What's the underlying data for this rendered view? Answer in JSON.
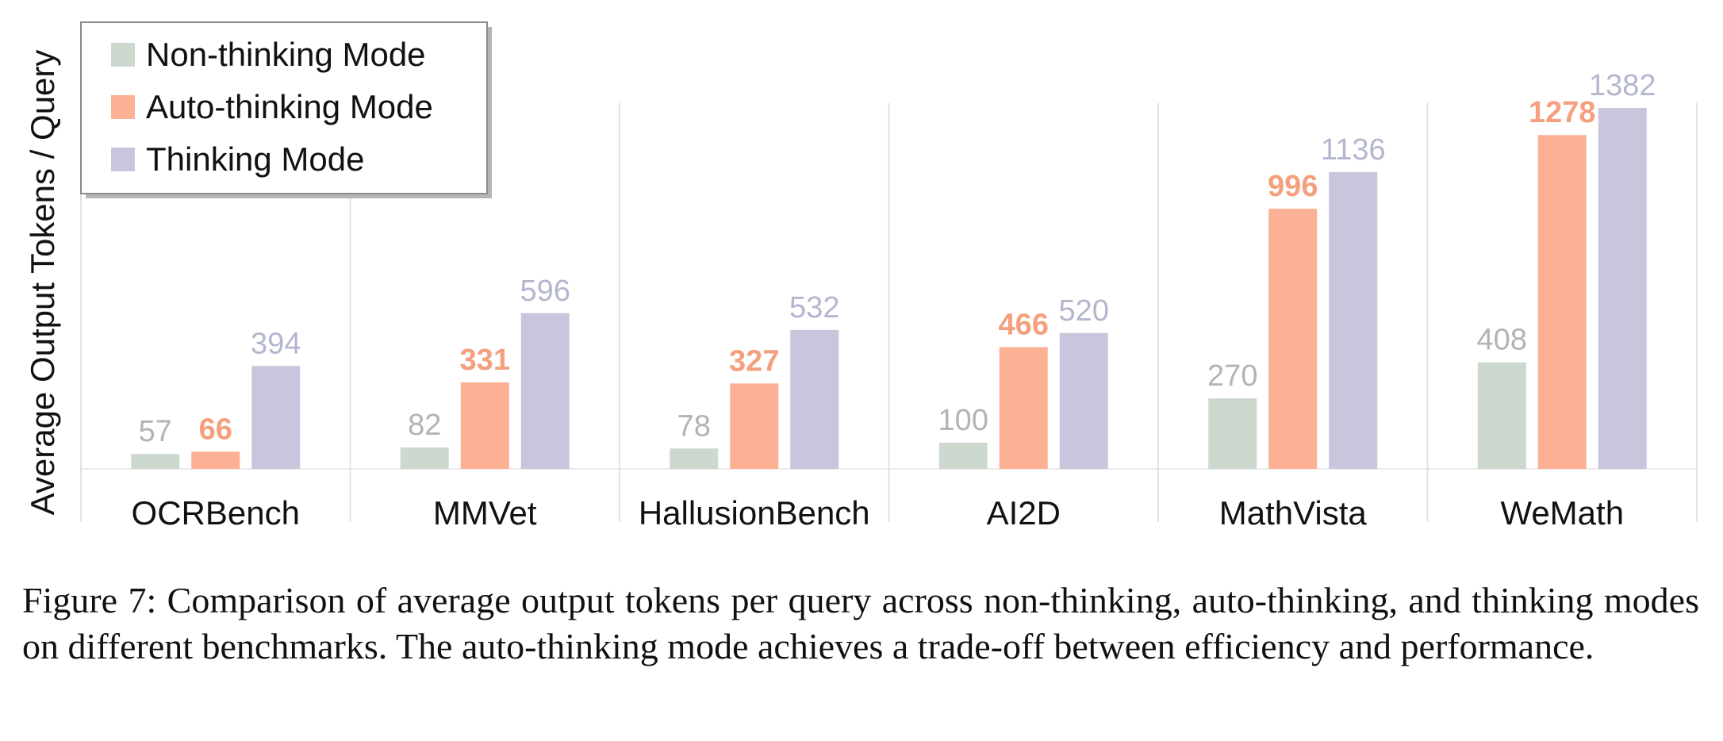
{
  "chart_data": {
    "type": "bar",
    "xlabel": "",
    "ylabel": "Average Output Tokens / Query",
    "ylim": [
      0,
      1382
    ],
    "grid": "vertical separators between categories",
    "legend_position": "top-left",
    "categories": [
      "OCRBench",
      "MMVet",
      "HallusionBench",
      "AI2D",
      "MathVista",
      "WeMath"
    ],
    "series": [
      {
        "name": "Non-thinking Mode",
        "color": "#cdd8ce",
        "label_color": "#b3b3b3",
        "bold_labels": false,
        "values": [
          57,
          82,
          78,
          100,
          270,
          408
        ]
      },
      {
        "name": "Auto-thinking Mode",
        "color": "#fcb094",
        "label_color": "#f4a07e",
        "bold_labels": true,
        "values": [
          66,
          331,
          327,
          466,
          996,
          1278
        ]
      },
      {
        "name": "Thinking Mode",
        "color": "#c7c6dc",
        "label_color": "#b4b6cf",
        "bold_labels": false,
        "values": [
          394,
          596,
          532,
          520,
          1136,
          1382
        ]
      }
    ]
  },
  "caption": "Figure 7: Comparison of average output tokens per query across non-thinking, auto-thinking, and thinking modes on different benchmarks. The auto-thinking mode achieves a trade-off between efficiency and performance."
}
